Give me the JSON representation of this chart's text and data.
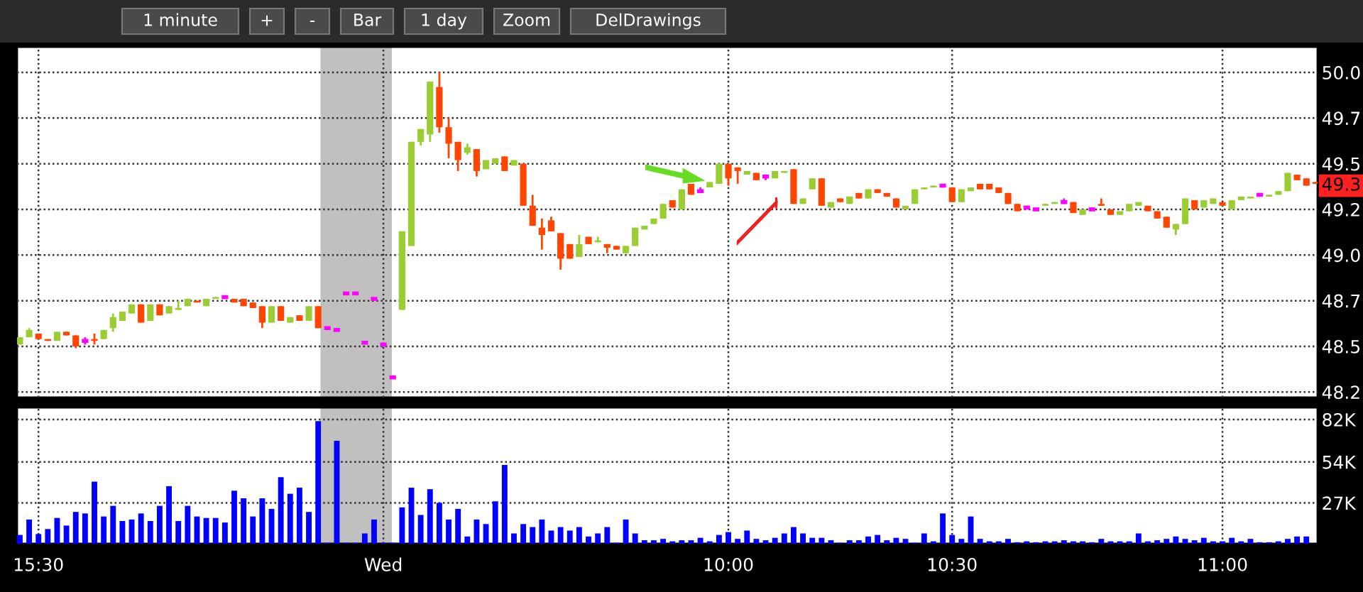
{
  "chart_data": [
    {
      "type": "candlestick",
      "annotations": [
        "1 minute",
        "+",
        "-",
        "Bar",
        "1 day",
        "Zoom",
        "DelDrawings",
        {
          "text": "49.3",
          "y": 49.38
        }
      ],
      "categories": [
        null,
        null,
        null,
        null,
        null,
        null,
        null,
        null,
        null,
        null,
        null,
        null,
        null,
        null,
        null,
        null,
        null,
        null,
        null,
        null,
        null,
        null,
        null,
        null,
        null,
        null,
        null,
        null,
        null,
        null,
        null,
        null,
        null,
        null,
        null,
        null,
        null,
        null,
        null,
        null,
        null,
        null,
        null,
        null,
        null,
        null,
        null,
        null,
        null,
        null,
        null,
        null,
        null,
        null,
        null,
        null,
        null,
        null,
        null,
        null,
        null,
        null,
        null,
        null,
        null,
        null,
        null,
        null,
        null,
        null,
        null,
        null,
        null,
        null,
        null,
        null,
        null,
        null,
        null,
        null,
        null,
        null,
        null,
        null,
        null,
        null,
        null,
        null,
        null,
        null,
        null,
        null,
        null,
        null,
        null,
        null,
        null,
        null,
        null,
        null,
        null,
        null,
        null,
        null,
        null,
        null,
        null,
        null,
        null,
        null,
        null,
        null,
        null,
        null,
        null,
        null,
        null,
        null,
        null,
        null,
        null,
        null,
        null,
        null,
        null,
        null,
        null,
        null,
        null,
        null,
        null,
        null,
        null,
        null,
        null,
        null,
        null,
        null,
        null,
        null
      ],
      "ohlc": [
        [
          48.51,
          48.55,
          48.51,
          48.55
        ],
        [
          48.55,
          48.6,
          48.55,
          48.59
        ],
        [
          48.57,
          48.57,
          48.54,
          48.54
        ],
        [
          48.54,
          48.54,
          48.53,
          48.53
        ],
        [
          48.53,
          48.58,
          48.53,
          48.58
        ],
        [
          48.58,
          48.58,
          48.56,
          48.56
        ],
        [
          48.56,
          48.56,
          48.49,
          48.5
        ],
        [
          48.53,
          48.55,
          48.51,
          48.53
        ],
        [
          48.54,
          48.57,
          48.51,
          48.53
        ],
        [
          48.54,
          48.59,
          48.54,
          48.59
        ],
        [
          48.6,
          48.68,
          48.58,
          48.66
        ],
        [
          48.64,
          48.69,
          48.64,
          48.69
        ],
        [
          48.68,
          48.73,
          48.68,
          48.73
        ],
        [
          48.73,
          48.73,
          48.63,
          48.63
        ],
        [
          48.64,
          48.73,
          48.64,
          48.73
        ],
        [
          48.73,
          48.73,
          48.67,
          48.67
        ],
        [
          48.68,
          48.72,
          48.68,
          48.72
        ],
        [
          48.7,
          48.75,
          48.7,
          48.71
        ],
        [
          48.72,
          48.76,
          48.72,
          48.76
        ],
        [
          48.75,
          48.75,
          48.74,
          48.74
        ],
        [
          48.72,
          48.76,
          48.72,
          48.76
        ],
        [
          48.76,
          48.77,
          48.76,
          48.77
        ],
        [
          48.77,
          48.78,
          48.76,
          48.77
        ],
        [
          48.76,
          48.76,
          48.74,
          48.74
        ],
        [
          48.76,
          48.76,
          48.72,
          48.72
        ],
        [
          48.74,
          48.74,
          48.71,
          48.71
        ],
        [
          48.72,
          48.72,
          48.6,
          48.63
        ],
        [
          48.63,
          48.72,
          48.63,
          48.72
        ],
        [
          48.72,
          48.72,
          48.64,
          48.64
        ],
        [
          48.63,
          48.66,
          48.63,
          48.66
        ],
        [
          48.67,
          48.67,
          48.64,
          48.64
        ],
        [
          48.64,
          48.72,
          48.64,
          48.72
        ],
        [
          48.72,
          48.72,
          48.6,
          48.6
        ],
        [
          48.6,
          48.6,
          48.6,
          48.6
        ],
        [
          48.59,
          48.59,
          48.59,
          48.59
        ],
        [
          48.79,
          48.79,
          48.79,
          48.79
        ],
        [
          48.79,
          48.79,
          48.79,
          48.79
        ],
        [
          48.52,
          48.52,
          48.52,
          48.52
        ],
        [
          48.76,
          48.76,
          48.76,
          48.76
        ],
        [
          48.51,
          48.51,
          48.51,
          48.51
        ],
        [
          48.33,
          48.33,
          48.33,
          48.33
        ],
        [
          48.7,
          49.13,
          48.7,
          49.13
        ],
        [
          49.05,
          49.62,
          49.05,
          49.62
        ],
        [
          49.62,
          49.69,
          49.6,
          49.69
        ],
        [
          49.66,
          49.95,
          49.62,
          49.95
        ],
        [
          49.92,
          50.0,
          49.67,
          49.7
        ],
        [
          49.7,
          49.75,
          49.53,
          49.61
        ],
        [
          49.62,
          49.62,
          49.46,
          49.52
        ],
        [
          49.56,
          49.61,
          49.55,
          49.59
        ],
        [
          49.58,
          49.58,
          49.43,
          49.46
        ],
        [
          49.47,
          49.52,
          49.47,
          49.52
        ],
        [
          49.5,
          49.53,
          49.5,
          49.53
        ],
        [
          49.54,
          49.54,
          49.46,
          49.46
        ],
        [
          49.49,
          49.52,
          49.49,
          49.52
        ],
        [
          49.5,
          49.5,
          49.27,
          49.27
        ],
        [
          49.27,
          49.33,
          49.16,
          49.16
        ],
        [
          49.15,
          49.2,
          49.03,
          49.11
        ],
        [
          49.19,
          49.21,
          49.13,
          49.13
        ],
        [
          49.12,
          49.12,
          48.92,
          48.98
        ],
        [
          49.06,
          49.06,
          48.98,
          48.98
        ],
        [
          48.99,
          49.11,
          48.99,
          49.06
        ],
        [
          49.1,
          49.1,
          49.06,
          49.06
        ],
        [
          49.07,
          49.1,
          49.07,
          49.08
        ],
        [
          49.06,
          49.06,
          49.01,
          49.04
        ],
        [
          49.05,
          49.05,
          49.03,
          49.03
        ],
        [
          49.01,
          49.05,
          49.01,
          49.05
        ],
        [
          49.05,
          49.15,
          49.05,
          49.15
        ],
        [
          49.14,
          49.16,
          49.14,
          49.16
        ],
        [
          49.17,
          49.2,
          49.17,
          49.2
        ],
        [
          49.2,
          49.28,
          49.2,
          49.28
        ],
        [
          49.3,
          49.3,
          49.26,
          49.26
        ],
        [
          49.25,
          49.36,
          49.25,
          49.36
        ],
        [
          49.39,
          49.39,
          49.33,
          49.33
        ],
        [
          49.35,
          49.37,
          49.34,
          49.35
        ],
        [
          49.37,
          49.4,
          49.37,
          49.4
        ],
        [
          49.39,
          49.5,
          49.39,
          49.5
        ],
        [
          49.5,
          49.5,
          49.38,
          49.42
        ],
        [
          49.48,
          49.48,
          49.39,
          49.46
        ],
        [
          49.44,
          49.46,
          49.44,
          49.46
        ],
        [
          49.45,
          49.45,
          49.41,
          49.41
        ],
        [
          49.43,
          49.44,
          49.41,
          49.43
        ],
        [
          49.42,
          49.46,
          49.42,
          49.46
        ],
        [
          49.45,
          49.46,
          49.45,
          49.46
        ],
        [
          49.47,
          49.47,
          49.28,
          49.28
        ],
        [
          49.28,
          49.31,
          49.28,
          49.31
        ],
        [
          49.36,
          49.42,
          49.36,
          49.42
        ],
        [
          49.42,
          49.42,
          49.27,
          49.27
        ],
        [
          49.26,
          49.29,
          49.26,
          49.29
        ],
        [
          49.31,
          49.31,
          49.29,
          49.29
        ],
        [
          49.28,
          49.32,
          49.28,
          49.32
        ],
        [
          49.34,
          49.34,
          49.31,
          49.31
        ],
        [
          49.31,
          49.36,
          49.31,
          49.36
        ],
        [
          49.36,
          49.36,
          49.34,
          49.34
        ],
        [
          49.34,
          49.34,
          49.32,
          49.32
        ],
        [
          49.31,
          49.31,
          49.26,
          49.26
        ],
        [
          49.25,
          49.27,
          49.25,
          49.27
        ],
        [
          49.28,
          49.36,
          49.28,
          49.36
        ],
        [
          49.36,
          49.37,
          49.36,
          49.37
        ],
        [
          49.37,
          49.38,
          49.37,
          49.38
        ],
        [
          49.38,
          49.38,
          49.37,
          49.38
        ],
        [
          49.37,
          49.37,
          49.29,
          49.29
        ],
        [
          49.29,
          49.36,
          49.29,
          49.36
        ],
        [
          49.35,
          49.37,
          49.35,
          49.37
        ],
        [
          49.39,
          49.39,
          49.36,
          49.36
        ],
        [
          49.39,
          49.39,
          49.36,
          49.36
        ],
        [
          49.37,
          49.37,
          49.34,
          49.34
        ],
        [
          49.34,
          49.34,
          49.28,
          49.28
        ],
        [
          49.28,
          49.28,
          49.24,
          49.24
        ],
        [
          49.26,
          49.27,
          49.25,
          49.26
        ],
        [
          49.25,
          49.26,
          49.25,
          49.25
        ],
        [
          49.27,
          49.28,
          49.27,
          49.28
        ],
        [
          49.28,
          49.29,
          49.28,
          49.29
        ],
        [
          49.29,
          49.31,
          49.28,
          49.29
        ],
        [
          49.29,
          49.29,
          49.23,
          49.23
        ],
        [
          49.22,
          49.25,
          49.22,
          49.25
        ],
        [
          49.25,
          49.26,
          49.25,
          49.25
        ],
        [
          49.28,
          49.31,
          49.27,
          49.27
        ],
        [
          49.25,
          49.25,
          49.22,
          49.22
        ],
        [
          49.22,
          49.24,
          49.22,
          49.24
        ],
        [
          49.24,
          49.28,
          49.24,
          49.28
        ],
        [
          49.27,
          49.29,
          49.27,
          49.29
        ],
        [
          49.27,
          49.27,
          49.24,
          49.24
        ],
        [
          49.24,
          49.24,
          49.2,
          49.2
        ],
        [
          49.21,
          49.21,
          49.15,
          49.15
        ],
        [
          49.14,
          49.17,
          49.11,
          49.17
        ],
        [
          49.17,
          49.31,
          49.17,
          49.31
        ],
        [
          49.3,
          49.3,
          49.25,
          49.25
        ],
        [
          49.26,
          49.3,
          49.26,
          49.3
        ],
        [
          49.28,
          49.31,
          49.28,
          49.31
        ],
        [
          49.29,
          49.29,
          49.27,
          49.27
        ],
        [
          49.25,
          49.3,
          49.25,
          49.3
        ],
        [
          49.3,
          49.32,
          49.3,
          49.32
        ],
        [
          49.31,
          49.32,
          49.31,
          49.32
        ],
        [
          49.33,
          49.33,
          49.32,
          49.33
        ],
        [
          49.32,
          49.33,
          49.32,
          49.33
        ],
        [
          49.33,
          49.35,
          49.33,
          49.35
        ],
        [
          49.35,
          49.45,
          49.35,
          49.45
        ],
        [
          49.44,
          49.44,
          49.41,
          49.41
        ],
        [
          49.42,
          49.42,
          49.38,
          49.38
        ],
        [
          49.4,
          49.4,
          49.39,
          49.39
        ]
      ],
      "colors": [
        "#9acd32",
        "#9acd32",
        "#ff4500",
        "#ff4500",
        "#9acd32",
        "#ff4500",
        "#ff4500",
        "#ff00ff",
        "#ff4500",
        "#9acd32",
        "#9acd32",
        "#9acd32",
        "#9acd32",
        "#ff4500",
        "#9acd32",
        "#ff4500",
        "#9acd32",
        "#9acd32",
        "#9acd32",
        "#ff4500",
        "#9acd32",
        "#9acd32",
        "#ff00ff",
        "#ff4500",
        "#ff4500",
        "#ff4500",
        "#ff4500",
        "#9acd32",
        "#ff4500",
        "#9acd32",
        "#ff4500",
        "#9acd32",
        "#ff4500",
        "#ff00ff",
        "#ff00ff",
        "#ff00ff",
        "#ff00ff",
        "#ff00ff",
        "#ff00ff",
        "#ff00ff",
        "#ff00ff",
        "#9acd32",
        "#9acd32",
        "#9acd32",
        "#9acd32",
        "#ff4500",
        "#ff4500",
        "#ff4500",
        "#9acd32",
        "#ff4500",
        "#9acd32",
        "#9acd32",
        "#ff4500",
        "#9acd32",
        "#ff4500",
        "#ff4500",
        "#ff4500",
        "#ff4500",
        "#ff4500",
        "#ff4500",
        "#9acd32",
        "#ff4500",
        "#9acd32",
        "#ff4500",
        "#ff4500",
        "#9acd32",
        "#9acd32",
        "#9acd32",
        "#9acd32",
        "#9acd32",
        "#ff4500",
        "#9acd32",
        "#ff4500",
        "#ff00ff",
        "#9acd32",
        "#9acd32",
        "#ff4500",
        "#ff4500",
        "#9acd32",
        "#ff4500",
        "#ff00ff",
        "#9acd32",
        "#9acd32",
        "#ff4500",
        "#9acd32",
        "#9acd32",
        "#ff4500",
        "#9acd32",
        "#ff4500",
        "#9acd32",
        "#ff4500",
        "#9acd32",
        "#ff4500",
        "#ff4500",
        "#ff4500",
        "#9acd32",
        "#9acd32",
        "#9acd32",
        "#9acd32",
        "#ff00ff",
        "#ff4500",
        "#9acd32",
        "#9acd32",
        "#ff4500",
        "#ff4500",
        "#ff4500",
        "#ff4500",
        "#ff4500",
        "#ff00ff",
        "#ff00ff",
        "#9acd32",
        "#9acd32",
        "#ff00ff",
        "#ff4500",
        "#9acd32",
        "#ff00ff",
        "#ff4500",
        "#ff4500",
        "#9acd32",
        "#9acd32",
        "#9acd32",
        "#ff4500",
        "#ff4500",
        "#ff4500",
        "#9acd32",
        "#9acd32",
        "#ff4500",
        "#9acd32",
        "#9acd32",
        "#ff4500",
        "#9acd32",
        "#9acd32",
        "#9acd32",
        "#ff00ff",
        "#9acd32",
        "#9acd32",
        "#9acd32",
        "#ff4500",
        "#ff4500",
        "#ff4500"
      ],
      "ylim": [
        48.22,
        50.14
      ],
      "yticks": [
        {
          "value": 48.25,
          "label": "48.2"
        },
        {
          "value": 48.5,
          "label": "48.5"
        },
        {
          "value": 48.75,
          "label": "48.7"
        },
        {
          "value": 49.0,
          "label": "49.0"
        },
        {
          "value": 49.25,
          "label": "49.2"
        },
        {
          "value": 49.5,
          "label": "49.5"
        },
        {
          "value": 49.75,
          "label": "49.7"
        },
        {
          "value": 50.0,
          "label": "50.0"
        }
      ],
      "tick_labels": "y",
      "grid": true
    },
    {
      "type": "bar",
      "categories": [
        null,
        null,
        "15:30",
        null,
        null,
        null,
        null,
        null,
        null,
        null,
        null,
        null,
        null,
        null,
        null,
        null,
        null,
        null,
        null,
        null,
        null,
        null,
        null,
        null,
        null,
        null,
        null,
        null,
        null,
        null,
        null,
        null,
        null,
        null,
        null,
        null,
        null,
        null,
        null,
        "Wed",
        null,
        null,
        null,
        null,
        null,
        null,
        null,
        null,
        null,
        null,
        null,
        null,
        null,
        null,
        null,
        null,
        null,
        null,
        null,
        null,
        null,
        null,
        null,
        null,
        null,
        null,
        null,
        null,
        null,
        null,
        null,
        null,
        null,
        null,
        null,
        null,
        "10:00",
        null,
        null,
        null,
        null,
        null,
        null,
        null,
        null,
        null,
        null,
        null,
        null,
        null,
        null,
        null,
        null,
        null,
        null,
        null,
        null,
        null,
        null,
        null,
        "10:30",
        null,
        null,
        null,
        null,
        null,
        null,
        null,
        null,
        null,
        null,
        null,
        null,
        null,
        null,
        null,
        null,
        null,
        null,
        null,
        null,
        null,
        null,
        null,
        null,
        null,
        null,
        null,
        null,
        "11:00",
        null,
        null,
        null,
        null,
        null,
        null,
        null,
        null,
        null,
        null
      ],
      "series": [
        {
          "color": "#0000ff",
          "values": [
            5800,
            16000,
            6400,
            9700,
            17000,
            12000,
            21000,
            20000,
            41000,
            18000,
            25000,
            15000,
            16000,
            20000,
            15000,
            25000,
            38000,
            15000,
            25000,
            18000,
            17000,
            17000,
            14000,
            35000,
            30000,
            18000,
            30000,
            23000,
            44000,
            33000,
            37000,
            21000,
            81000,
            600,
            68000,
            600,
            600,
            6800,
            16000,
            600,
            600,
            24000,
            37000,
            19000,
            36000,
            27000,
            16000,
            23000,
            4800,
            16000,
            13000,
            28000,
            52000,
            6800,
            13000,
            11000,
            16000,
            8700,
            11000,
            8700,
            11000,
            4800,
            6800,
            11000,
            600,
            16000,
            6800,
            2300,
            2300,
            3200,
            1600,
            2300,
            2300,
            3900,
            1600,
            5800,
            7700,
            3200,
            8700,
            3200,
            2300,
            3900,
            6800,
            11000,
            6800,
            3900,
            3900,
            2300,
            600,
            2300,
            2300,
            4800,
            5800,
            2300,
            3900,
            3200,
            600,
            6800,
            1600,
            20000,
            5800,
            3200,
            18000,
            3200,
            1600,
            1600,
            3200,
            1000,
            1600,
            1000,
            1600,
            1600,
            2300,
            1600,
            1600,
            1000,
            3200,
            1600,
            1600,
            1600,
            6800,
            1600,
            2300,
            3200,
            4800,
            3200,
            2300,
            3900,
            1600,
            1600,
            3900,
            1600,
            3200,
            1000,
            1000,
            1600,
            3200,
            4800,
            4800,
            null
          ]
        }
      ],
      "ylim": [
        0,
        90000
      ],
      "yticks": [
        {
          "value": 27000,
          "label": "27K"
        },
        {
          "value": 54000,
          "label": "54K"
        },
        {
          "value": 82000,
          "label": "82K"
        }
      ],
      "grid": true
    }
  ]
}
